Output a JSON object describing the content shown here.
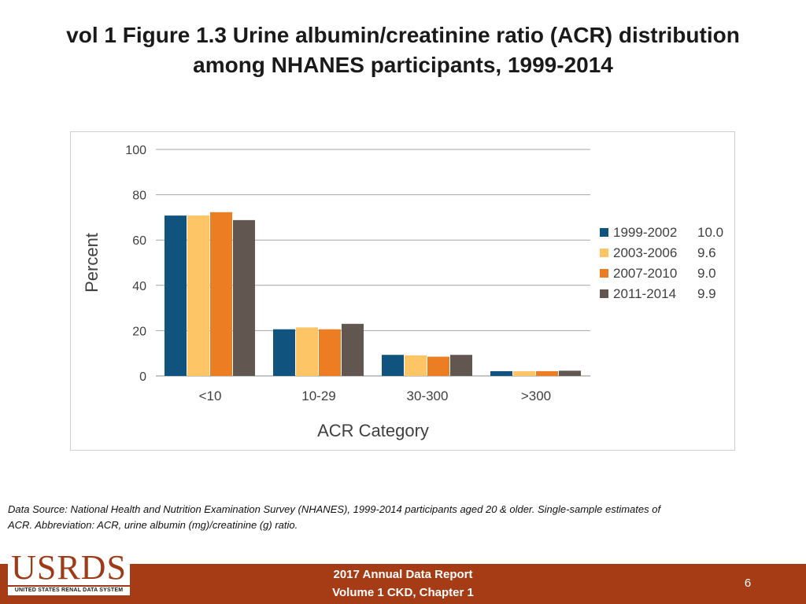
{
  "slide": {
    "title_line1": "vol 1 Figure 1.3 Urine albumin/creatinine ratio (ACR) distribution",
    "title_line2": "among NHANES participants, 1999-2014"
  },
  "chart_data": {
    "type": "bar",
    "title": "",
    "xlabel": "ACR Category",
    "ylabel": "Percent",
    "ylim": [
      0,
      100
    ],
    "yticks": [
      0,
      20,
      40,
      60,
      80,
      100
    ],
    "grid": true,
    "legend_position": "right",
    "categories": [
      "<10",
      "10-29",
      "30-300",
      ">300"
    ],
    "series": [
      {
        "name": "1999-2002",
        "legend_value": "10.0",
        "color": "#10537e",
        "values": [
          70.8,
          20.6,
          9.3,
          2.1
        ]
      },
      {
        "name": "2003-2006",
        "legend_value": "9.6",
        "color": "#fdc566",
        "values": [
          70.8,
          21.4,
          9.1,
          2.1
        ]
      },
      {
        "name": "2007-2010",
        "legend_value": "9.0",
        "color": "#ed7d22",
        "values": [
          72.3,
          20.6,
          8.5,
          2.1
        ]
      },
      {
        "name": "2011-2014",
        "legend_value": "9.9",
        "color": "#625750",
        "values": [
          68.8,
          23.0,
          9.3,
          2.3
        ]
      }
    ]
  },
  "source_note": {
    "line1": "Data Source: National Health and Nutrition Examination Survey (NHANES), 1999-2014 participants aged 20 & older. Single-sample estimates of",
    "line2": "ACR. Abbreviation: ACR, urine albumin (mg)/creatinine (g) ratio."
  },
  "footer": {
    "logo_text": "USRDS",
    "logo_subtext": "UNITED STATES RENAL DATA SYSTEM",
    "report_line1": "2017 Annual Data Report",
    "report_line2": "Volume 1 CKD, Chapter 1",
    "page_number": "6",
    "bar_color": "#a63c16"
  }
}
